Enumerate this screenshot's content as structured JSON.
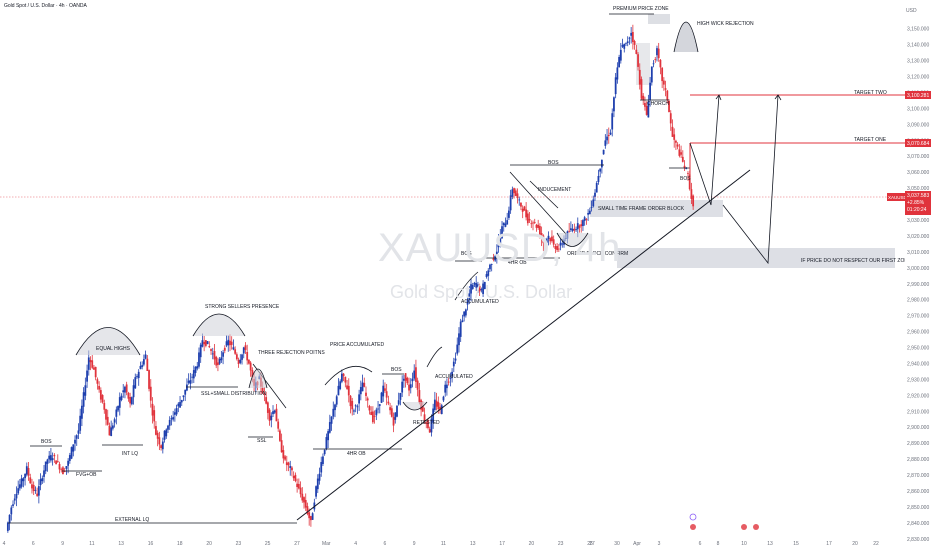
{
  "header": {
    "instrument": "Gold Spot / U.S. Dollar · 4h · OANDA",
    "watermark_symbol": "XAUUSD, 4h",
    "watermark_name": "Gold Spot / U.S. Dollar",
    "currency": "USD"
  },
  "colors": {
    "up": "#1e3fae",
    "down": "#e0333c",
    "trendline": "#131722",
    "target_line": "#e0333c",
    "zone": "#d1d4dc",
    "price_tag": "#e0333c",
    "axis_text": "#6b6f7a"
  },
  "chart_data": {
    "type": "candlestick",
    "symbol": "XAUUSD",
    "timeframe": "4h",
    "ylim": [
      2823,
      3168
    ],
    "y_ticks": [
      2830,
      2840,
      2850,
      2860,
      2870,
      2880,
      2890,
      2900,
      2910,
      2920,
      2930,
      2940,
      2950,
      2960,
      2970,
      2980,
      2990,
      3000,
      3010,
      3020,
      3030,
      3040,
      3050,
      3060,
      3070,
      3080,
      3090,
      3100,
      3110,
      3120,
      3130,
      3140,
      3150
    ],
    "y_tick_labels": [
      "2,830.000",
      "2,840.000",
      "2,850.000",
      "2,860.000",
      "2,870.000",
      "2,880.000",
      "2,890.000",
      "2,900.000",
      "2,910.000",
      "2,920.000",
      "2,930.000",
      "2,940.000",
      "2,950.000",
      "2,960.000",
      "2,970.000",
      "2,980.000",
      "2,990.000",
      "3,000.000",
      "3,010.000",
      "3,020.000",
      "3,030.000",
      "3,040.000",
      "3,050.000",
      "3,060.000",
      "3,070.000",
      "3,080.000",
      "3,090.000",
      "3,100.000",
      "3,110.000",
      "3,120.000",
      "3,130.000",
      "3,140.000",
      "3,150.000"
    ],
    "x_range": [
      0,
      120
    ],
    "x_labels": [
      {
        "x": 0,
        "label": "4"
      },
      {
        "x": 6,
        "label": "6"
      },
      {
        "x": 12,
        "label": "9"
      },
      {
        "x": 18,
        "label": "11"
      },
      {
        "x": 24,
        "label": "13"
      },
      {
        "x": 30,
        "label": "16"
      },
      {
        "x": 36,
        "label": "18"
      },
      {
        "x": 42,
        "label": "20"
      },
      {
        "x": 48,
        "label": "23"
      },
      {
        "x": 54,
        "label": "25"
      },
      {
        "x": 60,
        "label": "27"
      },
      {
        "x": 66,
        "label": "Mar"
      },
      {
        "x": 72,
        "label": "4"
      },
      {
        "x": 78,
        "label": "6"
      },
      {
        "x": 84,
        "label": "9"
      },
      {
        "x": 90,
        "label": "11"
      },
      {
        "x": 96,
        "label": "13"
      },
      {
        "x": 102,
        "label": "17"
      },
      {
        "x": 108,
        "label": "20"
      },
      {
        "x": 114,
        "label": "23"
      },
      {
        "x": 120,
        "label": "25"
      }
    ],
    "x_labels_right": [
      {
        "px": 592,
        "label": "27"
      },
      {
        "px": 617,
        "label": "30"
      },
      {
        "px": 637,
        "label": "Apr"
      },
      {
        "px": 659,
        "label": "3"
      },
      {
        "px": 700,
        "label": "6"
      },
      {
        "px": 718,
        "label": "8"
      },
      {
        "px": 744,
        "label": "10"
      },
      {
        "px": 770,
        "label": "13"
      },
      {
        "px": 796,
        "label": "15"
      },
      {
        "px": 829,
        "label": "17"
      },
      {
        "px": 855,
        "label": "20"
      },
      {
        "px": 876,
        "label": "22"
      }
    ],
    "series": [
      {
        "name": "XAUUSD",
        "close_path": [
          2835,
          2850,
          2860,
          2866,
          2874,
          2862,
          2858,
          2870,
          2880,
          2882,
          2877,
          2872,
          2878,
          2890,
          2898,
          2920,
          2944,
          2936,
          2922,
          2912,
          2896,
          2905,
          2918,
          2925,
          2914,
          2930,
          2938,
          2945,
          2916,
          2896,
          2888,
          2900,
          2905,
          2912,
          2918,
          2926,
          2932,
          2940,
          2955,
          2952,
          2946,
          2938,
          2948,
          2954,
          2949,
          2941,
          2950,
          2940,
          2925,
          2930,
          2919,
          2906,
          2912,
          2890,
          2878,
          2874,
          2866,
          2858,
          2850,
          2840,
          2862,
          2878,
          2892,
          2906,
          2920,
          2933,
          2925,
          2910,
          2915,
          2928,
          2915,
          2905,
          2912,
          2925,
          2914,
          2903,
          2918,
          2932,
          2924,
          2936,
          2917,
          2905,
          2898,
          2916,
          2910,
          2926,
          2932,
          2945,
          2965,
          2975,
          2988,
          2990,
          2985,
          2996,
          3004,
          3011,
          3025,
          3031,
          3050,
          3043,
          3037,
          3030,
          3029,
          3025,
          3016,
          3020,
          3014,
          3012,
          3018,
          3023,
          3025,
          3027,
          3030,
          3036,
          3048,
          3064,
          3080,
          3086,
          3118,
          3138,
          3140,
          3148,
          3134,
          3108,
          3096,
          3126,
          3136,
          3118,
          3106,
          3082,
          3075,
          3066,
          3058,
          3037
        ]
      }
    ],
    "last_price": "3,037.583",
    "last_change": "+2.85%",
    "countdown": "01:20:24",
    "price_tags": [
      {
        "label": "XAUUSD",
        "price": 3037.58
      },
      {
        "label": "3,100.281",
        "price": 3100.28
      },
      {
        "label": "3,070.684",
        "price": 3070.68
      }
    ],
    "targets": [
      {
        "name": "TARGET TWO",
        "price": 3100.28
      },
      {
        "name": "TARGET ONE",
        "price": 3070.68
      }
    ],
    "zones": [
      {
        "label": "SMALL TIME FRAME ORDER BLOCK",
        "top": 3029,
        "bottom": 3018
      },
      {
        "label": "IF PRICE DO NOT RESPECT OUR FIRST ZONE",
        "top": 3003,
        "bottom": 2991
      }
    ],
    "annotations": [
      "EXTERNAL LQ",
      "BOS",
      "FVG+OB",
      "INT LQ",
      "EQUAL HIGHS",
      "STRONG SELLERS PRESENCE",
      "SSL+SMALL DISTRIBUTION",
      "THREE REJECTION POITNS",
      "SSL",
      "PRICE ACCUMULATED",
      "BOS",
      "4HR OB",
      "RETESTED",
      "ACCUMULATED",
      "ACCUMULATED",
      "BOS",
      "BOS",
      "INDUCEMENT",
      "4HR OB",
      "ORDER BLOCK CONFIRM",
      "PREMIUM PRICE ZONE",
      "HIGH WICK REJECTION",
      "CHORCH",
      "BOS"
    ]
  }
}
